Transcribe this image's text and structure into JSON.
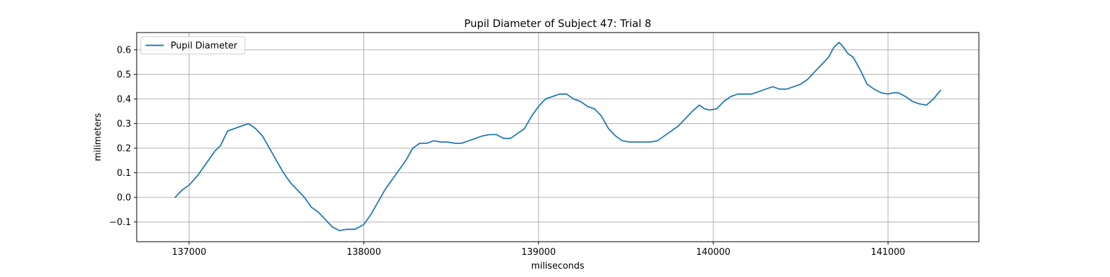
{
  "chart_data": {
    "type": "line",
    "title": "Pupil Diameter of Subject 47: Trial 8",
    "xlabel": "miliseconds",
    "ylabel": "milimeters",
    "xlim": [
      136700,
      141520
    ],
    "ylim": [
      -0.18,
      0.67
    ],
    "xticks": [
      137000,
      138000,
      139000,
      140000,
      141000
    ],
    "yticks": [
      -0.1,
      0.0,
      0.1,
      0.2,
      0.3,
      0.4,
      0.5,
      0.6
    ],
    "ytick_labels": [
      "−0.1",
      "0.0",
      "0.1",
      "0.2",
      "0.3",
      "0.4",
      "0.5",
      "0.6"
    ],
    "grid": true,
    "legend_position": "top-left",
    "series": [
      {
        "name": "Pupil Diameter",
        "color": "#1f77b4",
        "x": [
          136920,
          136960,
          137000,
          137050,
          137100,
          137150,
          137180,
          137220,
          137260,
          137300,
          137340,
          137380,
          137420,
          137460,
          137500,
          137540,
          137580,
          137620,
          137660,
          137700,
          137740,
          137780,
          137820,
          137860,
          137900,
          137950,
          138000,
          138040,
          138080,
          138120,
          138160,
          138200,
          138240,
          138280,
          138320,
          138360,
          138400,
          138440,
          138480,
          138520,
          138560,
          138600,
          138640,
          138680,
          138720,
          138760,
          138800,
          138840,
          138880,
          138920,
          138960,
          139000,
          139040,
          139080,
          139120,
          139160,
          139200,
          139240,
          139280,
          139320,
          139360,
          139400,
          139440,
          139480,
          139520,
          139560,
          139600,
          139640,
          139680,
          139720,
          139760,
          139800,
          139840,
          139880,
          139920,
          139950,
          139980,
          140020,
          140060,
          140100,
          140140,
          140180,
          140220,
          140260,
          140300,
          140340,
          140380,
          140420,
          140460,
          140500,
          140540,
          140580,
          140620,
          140660,
          140690,
          140720,
          140740,
          140770,
          140800,
          140840,
          140880,
          140920,
          140960,
          141000,
          141030,
          141060,
          141100,
          141140,
          141180,
          141220,
          141260,
          141300
        ],
        "y": [
          0.0,
          0.03,
          0.05,
          0.09,
          0.14,
          0.19,
          0.21,
          0.27,
          0.28,
          0.29,
          0.3,
          0.28,
          0.25,
          0.2,
          0.15,
          0.1,
          0.06,
          0.03,
          0.0,
          -0.04,
          -0.06,
          -0.09,
          -0.12,
          -0.135,
          -0.13,
          -0.13,
          -0.11,
          -0.07,
          -0.02,
          0.03,
          0.07,
          0.11,
          0.15,
          0.2,
          0.22,
          0.22,
          0.23,
          0.225,
          0.225,
          0.22,
          0.22,
          0.23,
          0.24,
          0.25,
          0.255,
          0.255,
          0.24,
          0.24,
          0.26,
          0.28,
          0.33,
          0.37,
          0.4,
          0.41,
          0.42,
          0.42,
          0.4,
          0.39,
          0.37,
          0.36,
          0.33,
          0.28,
          0.25,
          0.23,
          0.225,
          0.225,
          0.225,
          0.225,
          0.23,
          0.25,
          0.27,
          0.29,
          0.32,
          0.35,
          0.375,
          0.36,
          0.355,
          0.36,
          0.39,
          0.41,
          0.42,
          0.42,
          0.42,
          0.43,
          0.44,
          0.45,
          0.44,
          0.44,
          0.45,
          0.46,
          0.48,
          0.51,
          0.54,
          0.57,
          0.61,
          0.63,
          0.615,
          0.585,
          0.57,
          0.52,
          0.46,
          0.44,
          0.425,
          0.42,
          0.425,
          0.425,
          0.41,
          0.39,
          0.38,
          0.375,
          0.4,
          0.435
        ]
      }
    ]
  }
}
